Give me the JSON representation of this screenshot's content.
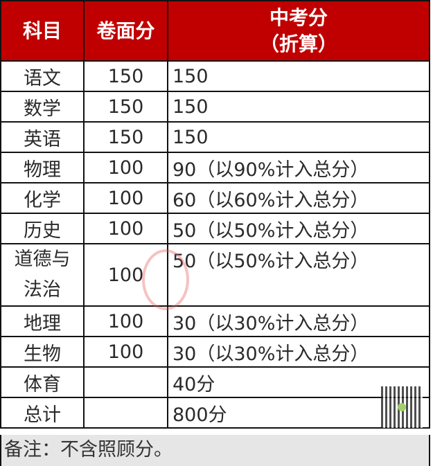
{
  "headers": [
    "科目",
    "卷面分",
    "中考分",
    "（折算）"
  ],
  "rows": [
    {
      "subject": "语文",
      "paper": "150",
      "score": "150"
    },
    {
      "subject": "数学",
      "paper": "150",
      "score": "150"
    },
    {
      "subject": "英语",
      "paper": "150",
      "score": "150"
    },
    {
      "subject": "物理",
      "paper": "100",
      "score": "90（以90%计入总分）"
    },
    {
      "subject": "化学",
      "paper": "100",
      "score": "60（以60%计入总分）"
    },
    {
      "subject": "历史",
      "paper": "100",
      "score": "50（以50%计入总分）"
    },
    {
      "subject": "道德与",
      "subject2": "法治",
      "paper": "100",
      "score": "50（以50%计入总分）"
    },
    {
      "subject": "地理",
      "paper": "100",
      "score": "30（以30%计入总分）"
    },
    {
      "subject": "生物",
      "paper": "100",
      "score": "30（以30%计入总分）"
    },
    {
      "subject": "体育",
      "paper": "",
      "score": "40分"
    },
    {
      "subject": "总计",
      "paper": "",
      "score": "800分"
    }
  ],
  "note": "备注：不含照顾分。",
  "colors": {
    "header_bg": "#c00000",
    "note_bg": "#e6e6e6"
  }
}
